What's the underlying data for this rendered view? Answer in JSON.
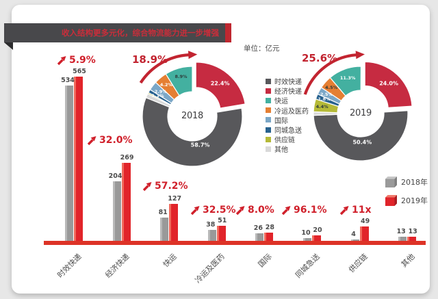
{
  "title": "收入结构更多元化，综合物流能力进一步增强",
  "unit_label": "单位：亿元",
  "palette": {
    "时效快递": "#58585b",
    "经济快递": "#c62b41",
    "快运": "#43b0a0",
    "冷运及医药": "#e57f33",
    "国际": "#7ba7c7",
    "同城急送": "#28628f",
    "供应链": "#b5ba38",
    "其他": "#d9d9d9"
  },
  "legend": {
    "items": [
      "时效快递",
      "经济快递",
      "快运",
      "冷运及医药",
      "国际",
      "同城急送",
      "供应链",
      "其他"
    ]
  },
  "year_legend": [
    {
      "label": "2018年",
      "color": "#9a9a9a"
    },
    {
      "label": "2019年",
      "color": "#e0242a"
    }
  ],
  "chart_data": [
    {
      "type": "pie",
      "year": "2018",
      "growth_label": "18.9%",
      "slices": [
        {
          "name": "经济快递",
          "value": 22.4,
          "label": "22.4%"
        },
        {
          "name": "时效快递",
          "value": 58.7,
          "label": "58.7%"
        },
        {
          "name": "其他",
          "value": 1.4,
          "label": ""
        },
        {
          "name": "供应链",
          "value": 0.4,
          "label": ""
        },
        {
          "name": "同城急送",
          "value": 1.1,
          "label": "1.1%"
        },
        {
          "name": "国际",
          "value": 2.9,
          "label": "2.9%"
        },
        {
          "name": "冷运及医药",
          "value": 4.2,
          "label": "4.2%"
        },
        {
          "name": "快运",
          "value": 8.9,
          "label": "8.9%"
        }
      ]
    },
    {
      "type": "pie",
      "year": "2019",
      "growth_label": "25.6%",
      "slices": [
        {
          "name": "经济快递",
          "value": 24.0,
          "label": "24.0%"
        },
        {
          "name": "时效快递",
          "value": 50.4,
          "label": "50.4%"
        },
        {
          "name": "其他",
          "value": 1.2,
          "label": ""
        },
        {
          "name": "供应链",
          "value": 4.4,
          "label": "4.4%"
        },
        {
          "name": "同城急送",
          "value": 1.8,
          "label": "1.8%"
        },
        {
          "name": "国际",
          "value": 2.5,
          "label": "2.5%"
        },
        {
          "name": "冷运及医药",
          "value": 4.5,
          "label": "4.5%"
        },
        {
          "name": "快运",
          "value": 11.3,
          "label": "11.3%"
        }
      ]
    },
    {
      "type": "bar",
      "categories": [
        "时效快递",
        "经济快递",
        "快运",
        "冷运及医药",
        "国际",
        "同城急送",
        "供应链",
        "其他"
      ],
      "series": [
        {
          "name": "2018年",
          "values": [
            534,
            204,
            81,
            38,
            26,
            10,
            4,
            13
          ]
        },
        {
          "name": "2019年",
          "values": [
            565,
            269,
            127,
            51,
            28,
            20,
            49,
            13
          ]
        }
      ],
      "growth_labels": [
        "5.9%",
        "32.0%",
        "57.2%",
        "32.5%",
        "8.0%",
        "96.1%",
        "11x",
        ""
      ]
    }
  ]
}
